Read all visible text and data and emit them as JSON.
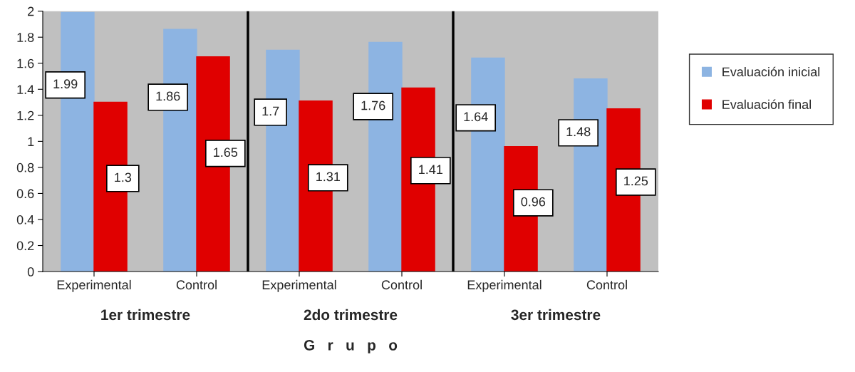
{
  "chart_data": {
    "type": "bar",
    "xlabel": "G   r   u   p   o",
    "categories": [
      "Experimental",
      "Control",
      "Experimental",
      "Control",
      "Experimental",
      "Control"
    ],
    "series": [
      {
        "name": "Evaluación inicial",
        "color": "#8db4e2",
        "values": [
          1.99,
          1.86,
          1.7,
          1.76,
          1.64,
          1.48
        ]
      },
      {
        "name": "Evaluación final",
        "color": "#e00000",
        "values": [
          1.3,
          1.65,
          1.31,
          1.41,
          0.96,
          1.25
        ]
      }
    ],
    "data_labels": true,
    "ylim": [
      0,
      2
    ],
    "yticks": [
      0,
      0.2,
      0.4,
      0.6,
      0.8,
      1,
      1.2,
      1.4,
      1.6,
      1.8,
      2
    ],
    "annotations": [
      "1er trimestre",
      "2do trimestre",
      "3er trimestre"
    ],
    "grid": false,
    "legend": "right"
  }
}
